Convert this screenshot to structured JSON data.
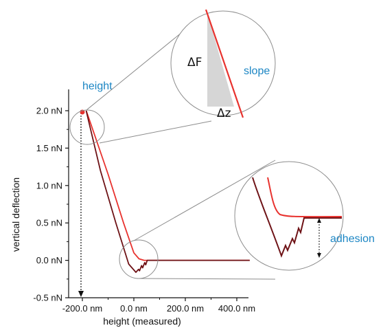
{
  "colors": {
    "approach": "#e8322e",
    "retract": "#6e1216",
    "annotation_blue": "#1c86c4",
    "lens_stroke": "#8c8c8c",
    "wedge_fill": "#d6d6d6"
  },
  "chart_data": {
    "type": "line",
    "xlabel": "height (measured)",
    "ylabel": "vertical deflection",
    "xlim": [
      -235,
      500
    ],
    "ylim": [
      -0.5,
      2.1
    ],
    "x_ticks": [
      {
        "value": -200,
        "label": "-200.0 nm"
      },
      {
        "value": 0,
        "label": "0.0 nm"
      },
      {
        "value": 200,
        "label": "200.0 nm"
      },
      {
        "value": 400,
        "label": "400.0 nm"
      }
    ],
    "y_ticks": [
      {
        "value": 2.0,
        "label": "2.0 nN"
      },
      {
        "value": 1.5,
        "label": "1.5 nN"
      },
      {
        "value": 1.0,
        "label": "1.0 nN"
      },
      {
        "value": 0.5,
        "label": "0.5 nN"
      },
      {
        "value": 0.0,
        "label": "0.0 nN"
      },
      {
        "value": -0.5,
        "label": "-0.5 nN"
      }
    ],
    "grid": false,
    "series": [
      {
        "color": "#e8322e",
        "points": [
          [
            -185,
            2.0
          ],
          [
            -170,
            1.85
          ],
          [
            -100,
            1.15
          ],
          [
            -40,
            0.5
          ],
          [
            0,
            0.1
          ],
          [
            20,
            0.02
          ],
          [
            40,
            0.0
          ],
          [
            450,
            0.0
          ]
        ]
      },
      {
        "color": "#6e1216",
        "points": [
          [
            -185,
            2.0
          ],
          [
            -175,
            1.85
          ],
          [
            -130,
            1.2
          ],
          [
            -70,
            0.5
          ],
          [
            -20,
            -0.05
          ],
          [
            8,
            -0.16
          ],
          [
            18,
            -0.12
          ],
          [
            22,
            -0.14
          ],
          [
            30,
            -0.07
          ],
          [
            34,
            -0.1
          ],
          [
            42,
            -0.03
          ],
          [
            46,
            -0.06
          ],
          [
            52,
            0.0
          ],
          [
            450,
            0.0
          ]
        ]
      }
    ],
    "annotations": {
      "height": "height",
      "slope": "slope",
      "delta_f": "ΔF",
      "delta_z": "Δz",
      "adhesion": "adhesion"
    }
  }
}
